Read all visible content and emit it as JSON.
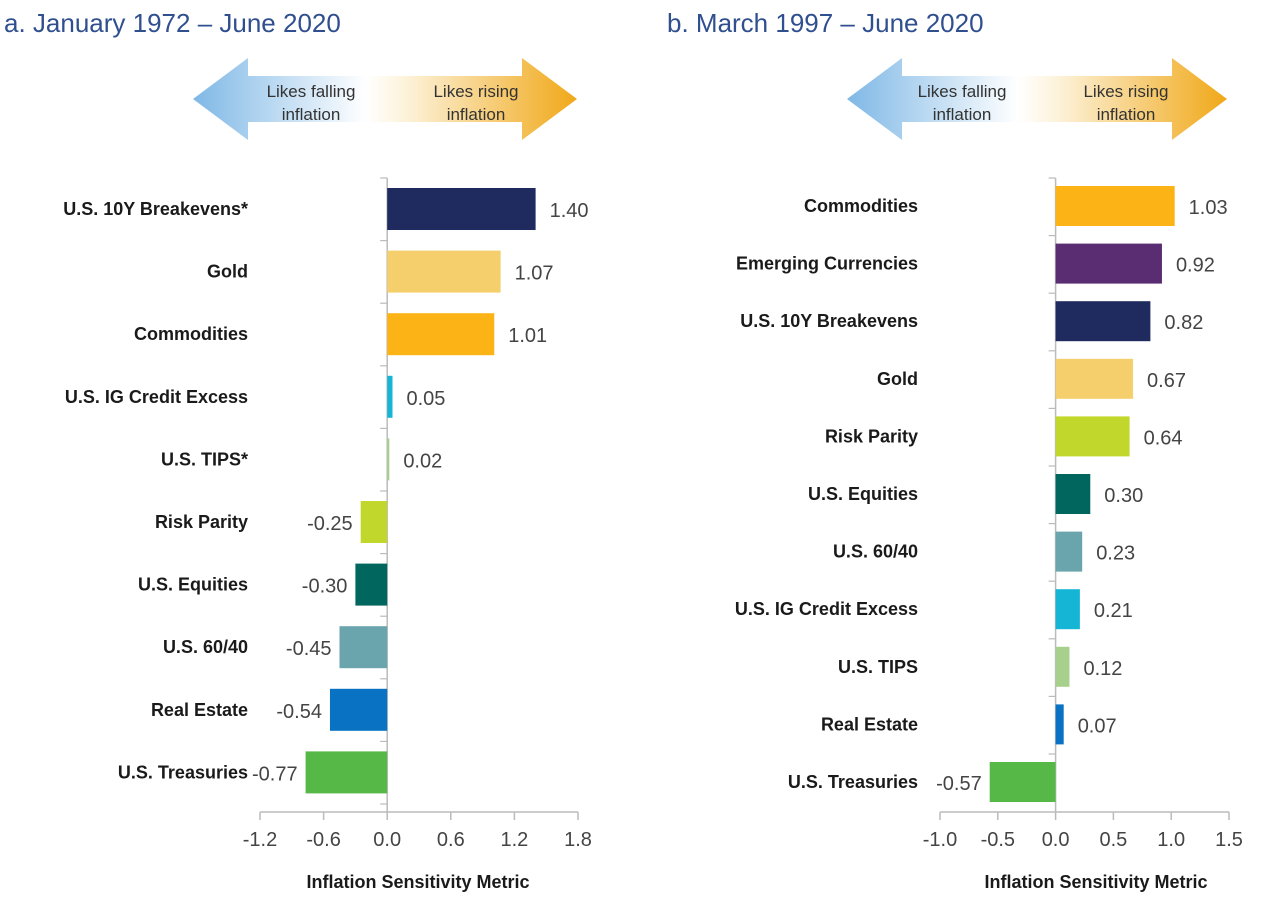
{
  "chart_data": [
    {
      "type": "bar",
      "orientation": "horizontal",
      "title": "a. January 1972 – June 2020",
      "arrow": {
        "left_label": [
          "Likes falling",
          "inflation"
        ],
        "right_label": [
          "Likes rising",
          "inflation"
        ]
      },
      "categories": [
        "U.S. 10Y Breakevens*",
        "Gold",
        "Commodities",
        "U.S. IG Credit Excess",
        "U.S. TIPS*",
        "Risk Parity",
        "U.S. Equities",
        "U.S. 60/40",
        "Real Estate",
        "U.S. Treasuries"
      ],
      "values": [
        1.4,
        1.07,
        1.01,
        0.05,
        0.02,
        -0.25,
        -0.3,
        -0.45,
        -0.54,
        -0.77
      ],
      "value_labels": [
        "1.40",
        "1.07",
        "1.01",
        "0.05",
        "0.02",
        "-0.25",
        "-0.30",
        "-0.45",
        "-0.54",
        "-0.77"
      ],
      "colors": [
        "#1f2a5e",
        "#f4cf6b",
        "#fbb316",
        "#15b5d6",
        "#a8d08d",
        "#c2d72c",
        "#00665e",
        "#6aa5ae",
        "#0a72c2",
        "#56b947"
      ],
      "xlabel": "Inflation Sensitivity Metric",
      "ylabel": "",
      "xlim": [
        -1.2,
        1.8
      ],
      "xticks": [
        -1.2,
        -0.6,
        0.0,
        0.6,
        1.2,
        1.8
      ],
      "xtick_labels": [
        "-1.2",
        "-0.6",
        "0.0",
        "0.6",
        "1.2",
        "1.8"
      ],
      "grid": false
    },
    {
      "type": "bar",
      "orientation": "horizontal",
      "title": "b. March 1997 – June 2020",
      "arrow": {
        "left_label": [
          "Likes falling",
          "inflation"
        ],
        "right_label": [
          "Likes rising",
          "inflation"
        ]
      },
      "categories": [
        "Commodities",
        "Emerging Currencies",
        "U.S. 10Y Breakevens",
        "Gold",
        "Risk Parity",
        "U.S. Equities",
        "U.S. 60/40",
        "U.S. IG Credit Excess",
        "U.S. TIPS",
        "Real Estate",
        "U.S. Treasuries"
      ],
      "values": [
        1.03,
        0.92,
        0.82,
        0.67,
        0.64,
        0.3,
        0.23,
        0.21,
        0.12,
        0.07,
        -0.57
      ],
      "value_labels": [
        "1.03",
        "0.92",
        "0.82",
        "0.67",
        "0.64",
        "0.30",
        "0.23",
        "0.21",
        "0.12",
        "0.07",
        "-0.57"
      ],
      "colors": [
        "#fbb316",
        "#5a2d72",
        "#1f2a5e",
        "#f4cf6b",
        "#c2d72c",
        "#00665e",
        "#6aa5ae",
        "#15b5d6",
        "#a8d08d",
        "#0a72c2",
        "#56b947"
      ],
      "xlabel": "Inflation Sensitivity Metric",
      "ylabel": "",
      "xlim": [
        -1.0,
        1.5
      ],
      "xticks": [
        -1.0,
        -0.5,
        0.0,
        0.5,
        1.0,
        1.5
      ],
      "xtick_labels": [
        "-1.0",
        "-0.5",
        "0.0",
        "0.5",
        "1.0",
        "1.5"
      ],
      "grid": false
    }
  ],
  "theme": {
    "title_color": "#2f4f8f",
    "axis_color": "#bbbbbb",
    "arrow_blue": "#7fb8e6",
    "arrow_orange": "#f0a818"
  }
}
